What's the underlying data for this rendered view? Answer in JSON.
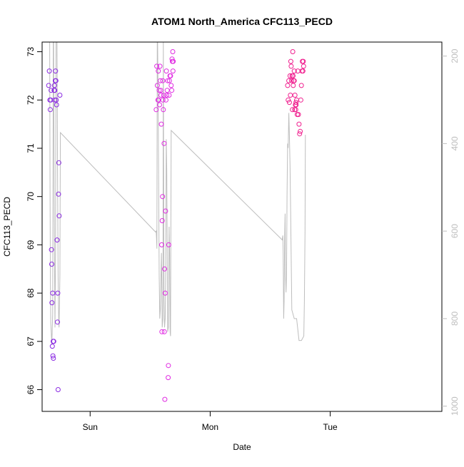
{
  "chart_data": {
    "type": "scatter",
    "title": "ATOM1 North_America CFC113_PECD",
    "xlabel": "Date",
    "ylabel": "CFC113_PECD",
    "x_ticks": [
      {
        "label": "Sun",
        "value": 1.0
      },
      {
        "label": "Mon",
        "value": 2.0
      },
      {
        "label": "Tue",
        "value": 3.0
      }
    ],
    "xlim": [
      0.6,
      3.93
    ],
    "ylim": [
      65.55,
      73.2
    ],
    "y_ticks": [
      66,
      67,
      68,
      69,
      70,
      71,
      72,
      73
    ],
    "y2_ticks": [
      200,
      400,
      600,
      800,
      1000
    ],
    "y2lim": [
      1012,
      168
    ],
    "y2_reversed": true,
    "colors": {
      "day1": "#8B2BE2",
      "day2": "#E02BE2",
      "day3": "#F0208F",
      "line": "#BEBEBE"
    },
    "series": [
      {
        "color_key": "day1",
        "points": [
          [
            0.655,
            72.3
          ],
          [
            0.66,
            72.6
          ],
          [
            0.665,
            72.0
          ],
          [
            0.668,
            71.8
          ],
          [
            0.672,
            72.0
          ],
          [
            0.675,
            72.2
          ],
          [
            0.678,
            68.9
          ],
          [
            0.68,
            68.6
          ],
          [
            0.682,
            67.8
          ],
          [
            0.685,
            66.9
          ],
          [
            0.688,
            68.0
          ],
          [
            0.69,
            66.7
          ],
          [
            0.692,
            67.0
          ],
          [
            0.694,
            66.65
          ],
          [
            0.697,
            67.0
          ],
          [
            0.7,
            72.2
          ],
          [
            0.703,
            72.3
          ],
          [
            0.706,
            72.0
          ],
          [
            0.71,
            72.4
          ],
          [
            0.712,
            72.6
          ],
          [
            0.715,
            72.4
          ],
          [
            0.718,
            72.0
          ],
          [
            0.72,
            71.9
          ],
          [
            0.725,
            69.1
          ],
          [
            0.728,
            67.4
          ],
          [
            0.73,
            68.0
          ],
          [
            0.733,
            66.0
          ],
          [
            0.737,
            70.05
          ],
          [
            0.739,
            70.7
          ],
          [
            0.742,
            69.6
          ],
          [
            0.748,
            72.1
          ],
          [
            0.705,
            72.2
          ]
        ]
      },
      {
        "color_key": "day2",
        "points": [
          [
            1.55,
            71.8
          ],
          [
            1.555,
            72.7
          ],
          [
            1.56,
            72.3
          ],
          [
            1.565,
            72.0
          ],
          [
            1.568,
            72.6
          ],
          [
            1.57,
            72.0
          ],
          [
            1.575,
            72.2
          ],
          [
            1.578,
            71.9
          ],
          [
            1.582,
            72.7
          ],
          [
            1.585,
            72.4
          ],
          [
            1.588,
            72.2
          ],
          [
            1.59,
            72.1
          ],
          [
            1.593,
            71.5
          ],
          [
            1.596,
            69.0
          ],
          [
            1.598,
            67.2
          ],
          [
            1.6,
            69.5
          ],
          [
            1.603,
            70.0
          ],
          [
            1.605,
            72.4
          ],
          [
            1.607,
            72.0
          ],
          [
            1.61,
            71.8
          ],
          [
            1.613,
            72.1
          ],
          [
            1.616,
            71.1
          ],
          [
            1.618,
            67.2
          ],
          [
            1.62,
            68.5
          ],
          [
            1.622,
            65.8
          ],
          [
            1.625,
            68.0
          ],
          [
            1.628,
            69.7
          ],
          [
            1.632,
            72.0
          ],
          [
            1.635,
            72.6
          ],
          [
            1.638,
            72.1
          ],
          [
            1.642,
            72.2
          ],
          [
            1.646,
            72.4
          ],
          [
            1.65,
            66.25
          ],
          [
            1.652,
            66.5
          ],
          [
            1.655,
            69.0
          ],
          [
            1.658,
            72.1
          ],
          [
            1.66,
            72.4
          ],
          [
            1.665,
            72.5
          ],
          [
            1.67,
            72.5
          ],
          [
            1.675,
            72.3
          ],
          [
            1.68,
            72.2
          ],
          [
            1.682,
            72.85
          ],
          [
            1.685,
            72.8
          ],
          [
            1.688,
            73.0
          ],
          [
            1.69,
            72.6
          ],
          [
            1.692,
            72.8
          ]
        ]
      },
      {
        "color_key": "day3",
        "points": [
          [
            2.645,
            72.3
          ],
          [
            2.65,
            72.0
          ],
          [
            2.655,
            72.4
          ],
          [
            2.66,
            71.95
          ],
          [
            2.665,
            72.5
          ],
          [
            2.668,
            72.1
          ],
          [
            2.672,
            72.8
          ],
          [
            2.675,
            72.7
          ],
          [
            2.678,
            72.4
          ],
          [
            2.682,
            72.5
          ],
          [
            2.685,
            71.8
          ],
          [
            2.688,
            73.0
          ],
          [
            2.692,
            72.3
          ],
          [
            2.695,
            72.4
          ],
          [
            2.7,
            72.6
          ],
          [
            2.703,
            71.8
          ],
          [
            2.706,
            72.1
          ],
          [
            2.71,
            71.9
          ],
          [
            2.713,
            71.8
          ],
          [
            2.716,
            71.9
          ],
          [
            2.72,
            72.0
          ],
          [
            2.725,
            71.7
          ],
          [
            2.73,
            72.6
          ],
          [
            2.735,
            71.7
          ],
          [
            2.74,
            71.5
          ],
          [
            2.745,
            71.3
          ],
          [
            2.75,
            71.35
          ],
          [
            2.755,
            72.0
          ],
          [
            2.76,
            72.3
          ],
          [
            2.765,
            72.6
          ],
          [
            2.768,
            72.8
          ],
          [
            2.772,
            72.6
          ],
          [
            2.775,
            72.8
          ],
          [
            2.778,
            72.7
          ],
          [
            2.69,
            72.5
          ],
          [
            2.7,
            72.4
          ],
          [
            2.715,
            71.95
          ]
        ]
      }
    ],
    "line": [
      [
        0.663,
        168
      ],
      [
        0.666,
        500
      ],
      [
        0.669,
        720
      ],
      [
        0.672,
        810
      ],
      [
        0.676,
        830
      ],
      [
        0.68,
        860
      ],
      [
        0.684,
        830
      ],
      [
        0.688,
        790
      ],
      [
        0.69,
        600
      ],
      [
        0.693,
        168
      ],
      [
        0.696,
        168
      ],
      [
        0.7,
        500
      ],
      [
        0.704,
        700
      ],
      [
        0.707,
        820
      ],
      [
        0.712,
        650
      ],
      [
        0.716,
        168
      ],
      [
        0.72,
        168
      ],
      [
        0.724,
        168
      ],
      [
        0.729,
        500
      ],
      [
        0.733,
        700
      ],
      [
        0.738,
        800
      ],
      [
        0.741,
        820
      ],
      [
        0.745,
        760
      ],
      [
        0.748,
        700
      ],
      [
        0.752,
        375
      ],
      [
        1.545,
        602
      ],
      [
        1.55,
        600
      ],
      [
        1.553,
        618
      ],
      [
        1.556,
        640
      ],
      [
        1.559,
        168
      ],
      [
        1.562,
        168
      ],
      [
        1.566,
        300
      ],
      [
        1.57,
        450
      ],
      [
        1.575,
        700
      ],
      [
        1.58,
        800
      ],
      [
        1.585,
        780
      ],
      [
        1.59,
        700
      ],
      [
        1.594,
        650
      ],
      [
        1.6,
        820
      ],
      [
        1.606,
        800
      ],
      [
        1.61,
        168
      ],
      [
        1.615,
        750
      ],
      [
        1.62,
        820
      ],
      [
        1.625,
        800
      ],
      [
        1.63,
        680
      ],
      [
        1.634,
        390
      ],
      [
        1.638,
        460
      ],
      [
        1.642,
        620
      ],
      [
        1.646,
        830
      ],
      [
        1.652,
        820
      ],
      [
        1.658,
        590
      ],
      [
        1.662,
        650
      ],
      [
        1.666,
        830
      ],
      [
        1.67,
        840
      ],
      [
        1.675,
        370
      ],
      [
        2.6,
        620
      ],
      [
        2.605,
        610
      ],
      [
        2.608,
        650
      ],
      [
        2.612,
        800
      ],
      [
        2.616,
        760
      ],
      [
        2.62,
        620
      ],
      [
        2.624,
        560
      ],
      [
        2.628,
        700
      ],
      [
        2.632,
        740
      ],
      [
        2.636,
        700
      ],
      [
        2.64,
        520
      ],
      [
        2.645,
        400
      ],
      [
        2.65,
        410
      ],
      [
        2.655,
        330
      ],
      [
        2.66,
        380
      ],
      [
        2.665,
        450
      ],
      [
        2.67,
        550
      ],
      [
        2.68,
        780
      ],
      [
        2.7,
        800
      ],
      [
        2.72,
        800
      ],
      [
        2.74,
        850
      ],
      [
        2.76,
        850
      ],
      [
        2.78,
        840
      ],
      [
        2.785,
        760
      ],
      [
        2.79,
        600
      ],
      [
        2.793,
        380
      ]
    ]
  }
}
